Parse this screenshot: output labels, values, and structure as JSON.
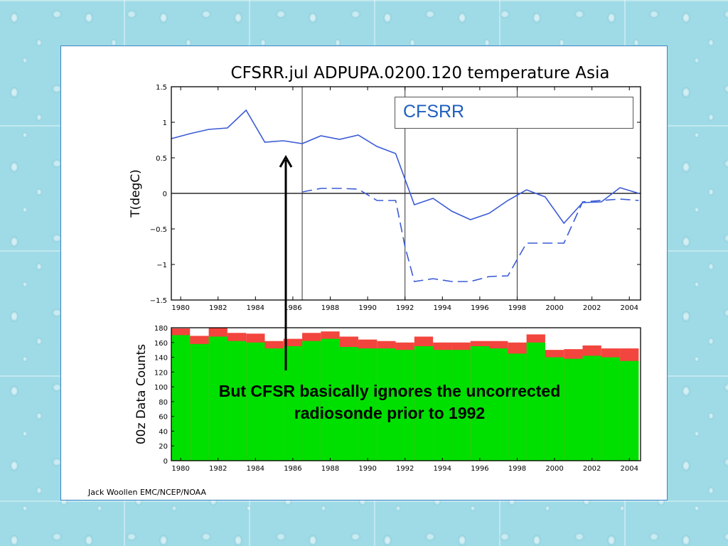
{
  "credit": "Jack Woollen EMC/NCEP/NOAA",
  "callout": {
    "line1": "But CFSR basically ignores the uncorrected",
    "line2": "radiosonde prior to 1992"
  },
  "colors": {
    "series_line": "#3b5bd6",
    "green": "#00e000",
    "red": "#f2453d",
    "panel_border": "#3b83c7"
  },
  "chart_data": [
    {
      "type": "line",
      "title": "CFSRR.jul ADPUPA.0200.120 temperature Asia",
      "ylabel": "T(degC)",
      "xlabel": "",
      "xlim": [
        1979.5,
        2004.6
      ],
      "ylim": [
        -1.5,
        1.5
      ],
      "xticks": [
        "1980",
        "1982",
        "1984",
        "1986",
        "1988",
        "1990",
        "1992",
        "1994",
        "1996",
        "1998",
        "2000",
        "2002",
        "2004"
      ],
      "yticks": [
        "1.5",
        "1",
        "0.5",
        "0",
        "−0.5",
        "−1",
        "−1.5"
      ],
      "vertical_lines": [
        1986.5,
        1992.0,
        1998.0
      ],
      "legend": [
        "CFSRR"
      ],
      "legend_position": "top-right",
      "series": [
        {
          "name": "CFSRR",
          "style": "solid",
          "x": [
            1979.5,
            1980.5,
            1981.5,
            1982.5,
            1983.5,
            1984.5,
            1985.5,
            1986.5,
            1987.5,
            1988.5,
            1989.5,
            1990.5,
            1991.5,
            1992.5,
            1993.5,
            1994.5,
            1995.5,
            1996.5,
            1997.5,
            1998.5,
            1999.5,
            2000.5,
            2001.5,
            2002.5,
            2003.5,
            2004.5
          ],
          "y": [
            0.77,
            0.84,
            0.9,
            0.92,
            1.17,
            0.72,
            0.74,
            0.7,
            0.81,
            0.76,
            0.82,
            0.66,
            0.56,
            -0.16,
            -0.07,
            -0.25,
            -0.37,
            -0.28,
            -0.1,
            0.05,
            -0.05,
            -0.42,
            -0.13,
            -0.12,
            0.08,
            0.0
          ]
        },
        {
          "style": "dashed",
          "x": [
            1986.5,
            1987.5,
            1988.5,
            1989.5,
            1990.5,
            1991.5,
            1992.0,
            1992.5,
            1993.5,
            1994.5,
            1995.5,
            1996.5,
            1997.5,
            1998.5,
            1999.5,
            2000.5,
            2001.5,
            2002.5,
            2003.5,
            2004.5
          ],
          "y": [
            0.02,
            0.07,
            0.07,
            0.06,
            -0.1,
            -0.1,
            -0.75,
            -1.24,
            -1.2,
            -1.24,
            -1.24,
            -1.17,
            -1.16,
            -0.7,
            -0.7,
            -0.7,
            -0.12,
            -0.1,
            -0.08,
            -0.1
          ]
        }
      ]
    },
    {
      "type": "bar",
      "title": "",
      "ylabel": "00z Data Counts",
      "xlabel": "",
      "xlim": [
        1979.5,
        2004.6
      ],
      "ylim": [
        0,
        180
      ],
      "xticks": [
        "1980",
        "1982",
        "1984",
        "1986",
        "1988",
        "1990",
        "1992",
        "1994",
        "1996",
        "1998",
        "2000",
        "2002",
        "2004"
      ],
      "yticks": [
        "180",
        "160",
        "140",
        "120",
        "100",
        "80",
        "60",
        "40",
        "20",
        "0"
      ],
      "categories": [
        "1980",
        "1981",
        "1982",
        "1983",
        "1984",
        "1985",
        "1986",
        "1987",
        "1988",
        "1989",
        "1990",
        "1991",
        "1992",
        "1993",
        "1994",
        "1995",
        "1996",
        "1997",
        "1998",
        "1999",
        "2000",
        "2001",
        "2002",
        "2003",
        "2004"
      ],
      "series": [
        {
          "color": "green",
          "values": [
            170,
            158,
            168,
            162,
            160,
            152,
            155,
            162,
            165,
            154,
            152,
            152,
            150,
            155,
            150,
            150,
            155,
            152,
            145,
            160,
            140,
            138,
            142,
            140,
            135
          ]
        },
        {
          "color": "red",
          "values": [
            179,
            169,
            180,
            173,
            172,
            162,
            165,
            173,
            175,
            168,
            164,
            162,
            160,
            168,
            160,
            160,
            162,
            162,
            160,
            171,
            150,
            151,
            156,
            152,
            152
          ]
        }
      ]
    }
  ]
}
